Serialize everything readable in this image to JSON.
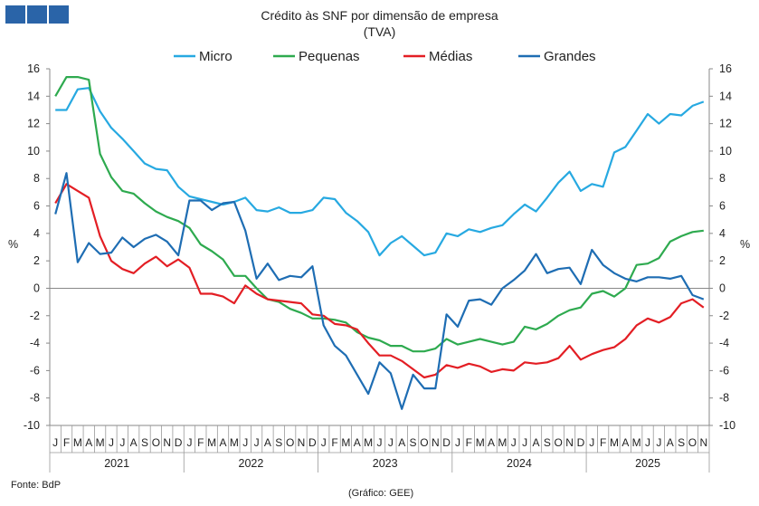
{
  "header": {
    "logo_color": "#2a64a8",
    "logo_icon": "bank-logo-squares"
  },
  "chart_data": {
    "type": "line",
    "title": "Crédito às SNF por dimensão de empresa",
    "subtitle": "(TVA)",
    "ylabel_left": "%",
    "ylabel_right": "%",
    "ylim": [
      -10,
      16
    ],
    "yticks": [
      "16",
      "14",
      "12",
      "10",
      "8",
      "6",
      "4",
      "2",
      "0",
      "-2",
      "-4",
      "-6",
      "-8",
      "-10"
    ],
    "ytick_values": [
      16,
      14,
      12,
      10,
      8,
      6,
      4,
      2,
      0,
      -2,
      -4,
      -6,
      -8,
      -10
    ],
    "month_labels": [
      "J",
      "F",
      "M",
      "A",
      "M",
      "J",
      "J",
      "A",
      "S",
      "O",
      "N",
      "D",
      "J",
      "F",
      "M",
      "A",
      "M",
      "J",
      "J",
      "A",
      "S",
      "O",
      "N",
      "D",
      "J",
      "F",
      "M",
      "A",
      "M",
      "J",
      "J",
      "A",
      "S",
      "O",
      "N",
      "D",
      "J",
      "F",
      "M",
      "A",
      "M",
      "J",
      "J",
      "A",
      "S",
      "O",
      "N",
      "D",
      "J",
      "F",
      "M",
      "A",
      "M",
      "J",
      "J",
      "A",
      "S",
      "O",
      "N"
    ],
    "years": [
      "2021",
      "2022",
      "2023",
      "2024",
      "2025"
    ],
    "legend_position": "top-center",
    "series": [
      {
        "name": "Micro",
        "color": "#27a9e1",
        "values": [
          13,
          13,
          14.5,
          14.6,
          12.9,
          11.7,
          10.9,
          10,
          9.1,
          8.7,
          8.6,
          7.4,
          6.7,
          6.5,
          6.3,
          6.1,
          6.3,
          6.6,
          5.7,
          5.6,
          5.9,
          5.5,
          5.5,
          5.7,
          6.6,
          6.5,
          5.5,
          4.9,
          4.1,
          2.4,
          3.3,
          3.8,
          3.1,
          2.4,
          2.6,
          4,
          3.8,
          4.3,
          4.1,
          4.4,
          4.6,
          5.4,
          6.1,
          5.6,
          6.6,
          7.7,
          8.5,
          7.1,
          7.6,
          7.4,
          9.9,
          10.3,
          11.5,
          12.7,
          12,
          12.7,
          12.6,
          13.3,
          13.6
        ]
      },
      {
        "name": "Pequenas",
        "color": "#2eaa4f",
        "values": [
          14,
          15.4,
          15.4,
          15.2,
          9.8,
          8.1,
          7.1,
          6.9,
          6.2,
          5.6,
          5.2,
          4.9,
          4.4,
          3.2,
          2.7,
          2.1,
          0.9,
          0.9,
          0,
          -0.8,
          -1,
          -1.5,
          -1.8,
          -2.2,
          -2.2,
          -2.3,
          -2.5,
          -3.2,
          -3.6,
          -3.8,
          -4.2,
          -4.2,
          -4.6,
          -4.6,
          -4.4,
          -3.7,
          -4.1,
          -3.9,
          -3.7,
          -3.9,
          -4.1,
          -3.9,
          -2.8,
          -3,
          -2.6,
          -2,
          -1.6,
          -1.4,
          -0.4,
          -0.2,
          -0.6,
          0,
          1.7,
          1.8,
          2.2,
          3.4,
          3.8,
          4.1,
          4.2
        ]
      },
      {
        "name": "Médias",
        "color": "#e31e24",
        "values": [
          6.2,
          7.6,
          7.1,
          6.6,
          3.8,
          2,
          1.4,
          1.1,
          1.8,
          2.3,
          1.6,
          2.1,
          1.5,
          -0.4,
          -0.4,
          -0.6,
          -1.1,
          0.2,
          -0.4,
          -0.8,
          -0.9,
          -1,
          -1.1,
          -1.9,
          -2,
          -2.6,
          -2.7,
          -3,
          -4,
          -4.9,
          -4.9,
          -5.3,
          -5.9,
          -6.5,
          -6.3,
          -5.6,
          -5.8,
          -5.5,
          -5.7,
          -6.1,
          -5.9,
          -6,
          -5.4,
          -5.5,
          -5.4,
          -5.1,
          -4.2,
          -5.2,
          -4.8,
          -4.5,
          -4.3,
          -3.7,
          -2.7,
          -2.2,
          -2.5,
          -2.1,
          -1.1,
          -0.8,
          -1.4
        ]
      },
      {
        "name": "Grandes",
        "color": "#1e6db3",
        "values": [
          5.4,
          8.4,
          1.9,
          3.3,
          2.5,
          2.6,
          3.7,
          3,
          3.6,
          3.9,
          3.4,
          2.4,
          6.4,
          6.4,
          5.7,
          6.2,
          6.3,
          4.2,
          0.7,
          1.8,
          0.6,
          0.9,
          0.8,
          1.6,
          -2.7,
          -4.2,
          -4.9,
          -6.3,
          -7.7,
          -5.4,
          -6.2,
          -8.8,
          -6.3,
          -7.3,
          -7.3,
          -1.9,
          -2.8,
          -0.9,
          -0.8,
          -1.2,
          0,
          0.6,
          1.3,
          2.5,
          1.1,
          1.4,
          1.5,
          0.3,
          2.8,
          1.7,
          1.1,
          0.7,
          0.5,
          0.8,
          0.8,
          0.7,
          0.9,
          -0.5,
          -0.8
        ]
      }
    ]
  },
  "footer": {
    "source": "Fonte: BdP",
    "credit": "(Gráfico: GEE)"
  }
}
